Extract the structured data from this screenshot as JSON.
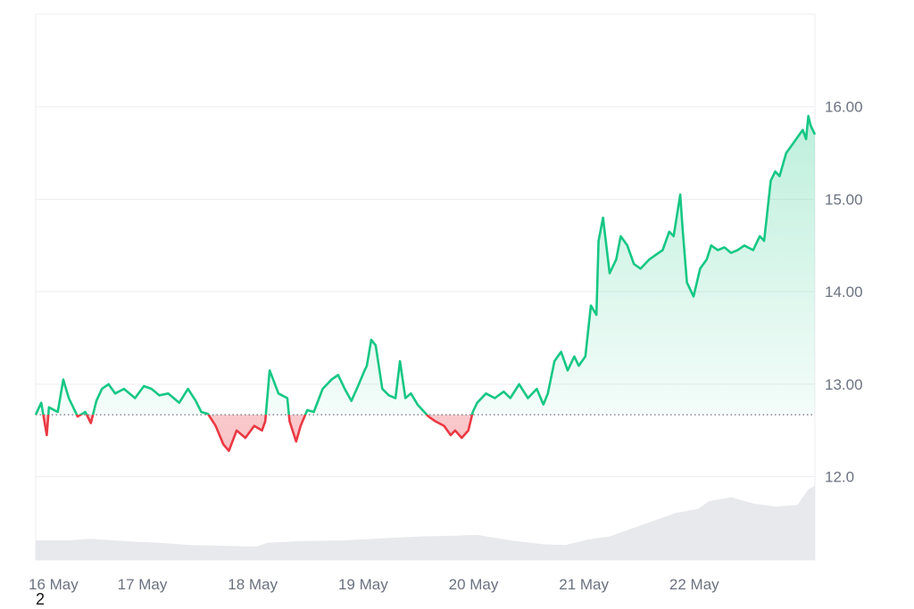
{
  "chart_data": {
    "type": "line",
    "baseline": 12.67,
    "ylim": [
      11.1,
      17.0
    ],
    "xlim": [
      0,
      7.06
    ],
    "y_ticks": [
      {
        "value": 16.0,
        "label": "16.00"
      },
      {
        "value": 15.0,
        "label": "15.00"
      },
      {
        "value": 14.0,
        "label": "14.00"
      },
      {
        "value": 13.0,
        "label": "13.00"
      },
      {
        "value": 12.0,
        "label": "12.0"
      }
    ],
    "x_ticks": [
      {
        "value": 0,
        "label": "16 May"
      },
      {
        "value": 1,
        "label": "17 May"
      },
      {
        "value": 2,
        "label": "18 May"
      },
      {
        "value": 3,
        "label": "19 May"
      },
      {
        "value": 4,
        "label": "20 May"
      },
      {
        "value": 5,
        "label": "21 May"
      },
      {
        "value": 6,
        "label": "22 May"
      }
    ],
    "colors": {
      "up": "#16c784",
      "down": "#ea3943",
      "up_fill": "#16c784",
      "down_fill": "#ea3943",
      "volume": "#e5e7eb",
      "grid": "#eceef1",
      "baseline": "#6b7280"
    },
    "series": [
      {
        "x": [
          0,
          0.05,
          0.1,
          0.12,
          0.2,
          0.25,
          0.3,
          0.38,
          0.45,
          0.5,
          0.55,
          0.6,
          0.66,
          0.72,
          0.8,
          0.9,
          0.98,
          1.05,
          1.12,
          1.2,
          1.3,
          1.38,
          1.45,
          1.5,
          1.56,
          1.63,
          1.7,
          1.75,
          1.82,
          1.9,
          1.98,
          2.05,
          2.08,
          2.12,
          2.2,
          2.28,
          2.3,
          2.36,
          2.4,
          2.46,
          2.52,
          2.6,
          2.68,
          2.74,
          2.8,
          2.86,
          2.92,
          2.98,
          3.0,
          3.04,
          3.08,
          3.14,
          3.2,
          3.26,
          3.3,
          3.35,
          3.4,
          3.46,
          3.52,
          3.56,
          3.62,
          3.7,
          3.76,
          3.8,
          3.86,
          3.92,
          3.96,
          4.0,
          4.08,
          4.16,
          4.24,
          4.3,
          4.38,
          4.46,
          4.54,
          4.6,
          4.64,
          4.7,
          4.76,
          4.82,
          4.88,
          4.92,
          4.98,
          5.03,
          5.08,
          5.1,
          5.14,
          5.2,
          5.26,
          5.3,
          5.36,
          5.42,
          5.48,
          5.56,
          5.62,
          5.68,
          5.74,
          5.78,
          5.84,
          5.86,
          5.9,
          5.96,
          6.02,
          6.08,
          6.12,
          6.18,
          6.24,
          6.3,
          6.36,
          6.42,
          6.5,
          6.56,
          6.6,
          6.66,
          6.7,
          6.74,
          6.8,
          6.86,
          6.92,
          6.95,
          6.98,
          7.0,
          7.02,
          7.04,
          7.06
        ],
        "y": [
          12.67,
          12.8,
          12.45,
          12.75,
          12.7,
          13.05,
          12.85,
          12.65,
          12.7,
          12.58,
          12.82,
          12.95,
          13.0,
          12.9,
          12.95,
          12.85,
          12.98,
          12.95,
          12.88,
          12.9,
          12.8,
          12.95,
          12.82,
          12.7,
          12.68,
          12.55,
          12.35,
          12.28,
          12.5,
          12.42,
          12.55,
          12.5,
          12.6,
          13.15,
          12.9,
          12.85,
          12.6,
          12.38,
          12.55,
          12.72,
          12.7,
          12.95,
          13.05,
          13.1,
          12.95,
          12.82,
          12.98,
          13.15,
          13.2,
          13.48,
          13.42,
          12.95,
          12.88,
          12.85,
          13.25,
          12.85,
          12.9,
          12.78,
          12.7,
          12.65,
          12.6,
          12.55,
          12.45,
          12.5,
          12.42,
          12.5,
          12.7,
          12.8,
          12.9,
          12.85,
          12.92,
          12.85,
          13.0,
          12.85,
          12.95,
          12.78,
          12.9,
          13.25,
          13.35,
          13.15,
          13.3,
          13.2,
          13.3,
          13.85,
          13.75,
          14.55,
          14.8,
          14.2,
          14.35,
          14.6,
          14.5,
          14.3,
          14.25,
          14.35,
          14.4,
          14.45,
          14.65,
          14.6,
          15.05,
          14.7,
          14.1,
          13.95,
          14.25,
          14.35,
          14.5,
          14.45,
          14.48,
          14.42,
          14.45,
          14.5,
          14.45,
          14.6,
          14.55,
          15.2,
          15.3,
          15.25,
          15.5,
          15.6,
          15.7,
          15.75,
          15.65,
          15.9,
          15.8,
          15.75,
          15.7
        ]
      }
    ],
    "volume": {
      "x": [
        0,
        0.3,
        0.5,
        0.8,
        1.1,
        1.4,
        1.7,
        2.0,
        2.1,
        2.4,
        2.8,
        3.2,
        3.5,
        3.8,
        4.0,
        4.3,
        4.6,
        4.8,
        5.0,
        5.2,
        5.3,
        5.6,
        5.8,
        6.0,
        6.1,
        6.3,
        6.5,
        6.7,
        6.9,
        7.0,
        7.06
      ],
      "y": [
        0.25,
        0.25,
        0.27,
        0.24,
        0.22,
        0.19,
        0.18,
        0.17,
        0.22,
        0.24,
        0.25,
        0.28,
        0.3,
        0.31,
        0.32,
        0.25,
        0.2,
        0.19,
        0.26,
        0.3,
        0.35,
        0.5,
        0.6,
        0.65,
        0.75,
        0.8,
        0.72,
        0.68,
        0.7,
        0.9,
        0.95
      ]
    },
    "footer": "2"
  }
}
